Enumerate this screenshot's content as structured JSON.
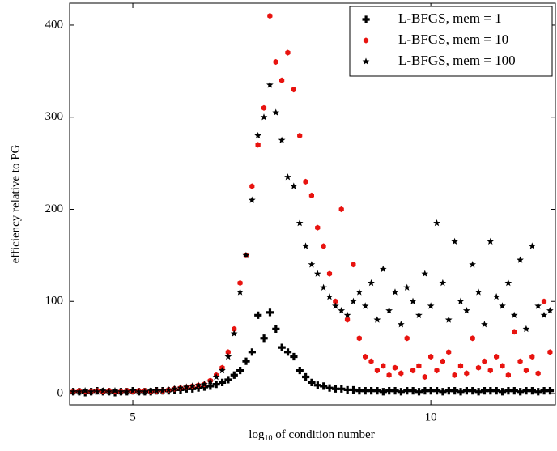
{
  "chart_data": {
    "type": "scatter",
    "x_label_parts": [
      "log",
      "10",
      " of condition number"
    ],
    "y_label": "efficiency relative to PG",
    "xlim": [
      3.94,
      12.09
    ],
    "ylim": [
      -12.3,
      423.7
    ],
    "xticks": [
      5,
      10
    ],
    "yticks": [
      0,
      100,
      200,
      300,
      400
    ],
    "grid": false,
    "legend_position": "upper right",
    "x": [
      4,
      4.1,
      4.2,
      4.3,
      4.4,
      4.5,
      4.6,
      4.7,
      4.8,
      4.9,
      5,
      5.1,
      5.2,
      5.3,
      5.4,
      5.5,
      5.6,
      5.7,
      5.8,
      5.9,
      6,
      6.1,
      6.2,
      6.3,
      6.4,
      6.5,
      6.6,
      6.7,
      6.8,
      6.9,
      7,
      7.1,
      7.2,
      7.3,
      7.4,
      7.5,
      7.6,
      7.7,
      7.8,
      7.9,
      8,
      8.1,
      8.2,
      8.3,
      8.4,
      8.5,
      8.6,
      8.7,
      8.8,
      8.9,
      9,
      9.1,
      9.2,
      9.3,
      9.4,
      9.5,
      9.6,
      9.7,
      9.8,
      9.9,
      10,
      10.1,
      10.2,
      10.3,
      10.4,
      10.5,
      10.6,
      10.7,
      10.8,
      10.9,
      11,
      11.1,
      11.2,
      11.3,
      11.4,
      11.5,
      11.6,
      11.7,
      11.8,
      11.9,
      12
    ],
    "series": [
      {
        "name": "L-BFGS, mem = 1",
        "color": "#000000",
        "marker": "plus",
        "values": [
          2,
          2,
          1,
          2,
          3,
          2,
          2,
          1,
          2,
          2,
          3,
          2,
          2,
          2,
          3,
          3,
          3,
          4,
          4,
          5,
          5,
          6,
          7,
          8,
          10,
          12,
          15,
          20,
          25,
          35,
          45,
          85,
          60,
          88,
          70,
          50,
          45,
          40,
          25,
          18,
          12,
          9,
          8,
          6,
          5,
          5,
          4,
          4,
          3,
          3,
          3,
          3,
          2,
          3,
          3,
          2,
          3,
          3,
          2,
          3,
          3,
          3,
          2,
          3,
          3,
          2,
          3,
          3,
          2,
          3,
          3,
          3,
          2,
          3,
          3,
          2,
          3,
          3,
          2,
          3,
          3
        ]
      },
      {
        "name": "L-BFGS, mem = 10",
        "color": "#e8130f",
        "marker": "hexagon",
        "values": [
          2,
          3,
          2,
          2,
          3,
          2,
          3,
          2,
          2,
          3,
          2,
          3,
          3,
          2,
          3,
          3,
          4,
          5,
          6,
          7,
          8,
          9,
          10,
          14,
          20,
          28,
          45,
          70,
          120,
          150,
          225,
          270,
          310,
          410,
          360,
          340,
          370,
          330,
          280,
          230,
          215,
          180,
          160,
          130,
          100,
          200,
          80,
          140,
          60,
          40,
          35,
          25,
          30,
          20,
          28,
          22,
          60,
          25,
          30,
          18,
          40,
          25,
          35,
          45,
          20,
          30,
          22,
          60,
          28,
          35,
          25,
          40,
          30,
          20,
          67,
          35,
          25,
          40,
          22,
          100,
          45
        ]
      },
      {
        "name": "L-BFGS, mem = 100",
        "color": "#000000",
        "marker": "star",
        "values": [
          2,
          2,
          3,
          2,
          2,
          3,
          2,
          3,
          2,
          2,
          3,
          2,
          2,
          3,
          3,
          3,
          4,
          5,
          6,
          7,
          8,
          9,
          10,
          13,
          18,
          25,
          40,
          65,
          110,
          150,
          210,
          280,
          300,
          335,
          305,
          275,
          235,
          225,
          185,
          160,
          140,
          130,
          115,
          105,
          95,
          90,
          85,
          100,
          110,
          95,
          120,
          80,
          135,
          90,
          110,
          75,
          115,
          100,
          85,
          130,
          95,
          185,
          120,
          80,
          165,
          100,
          90,
          140,
          110,
          75,
          165,
          105,
          95,
          120,
          85,
          145,
          70,
          160,
          95,
          85,
          90
        ]
      }
    ]
  }
}
